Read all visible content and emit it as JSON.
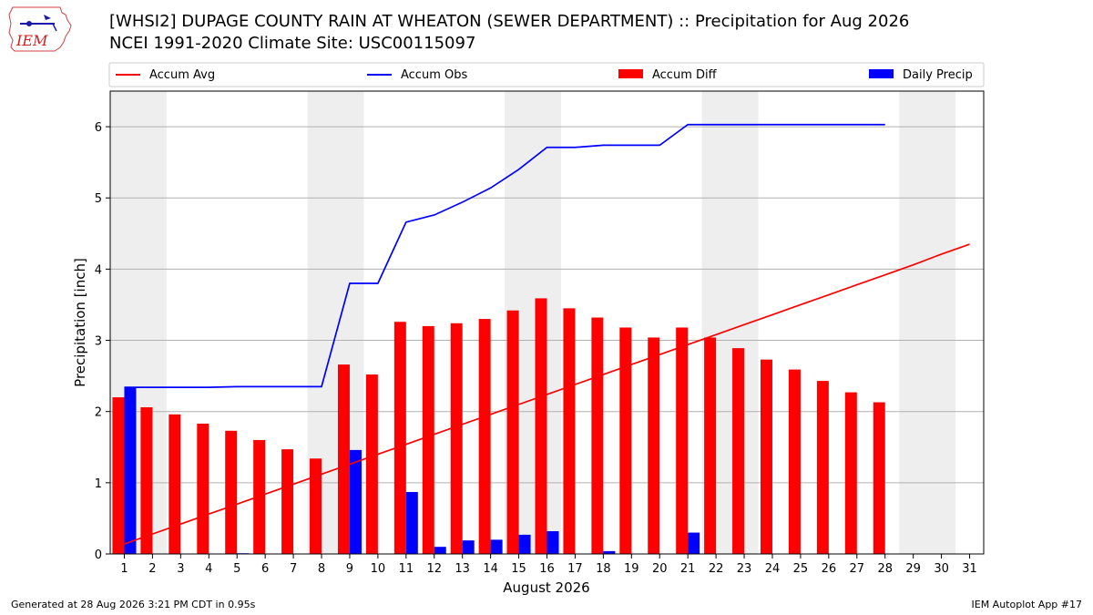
{
  "logo_text": "IEM",
  "title_line1": "[WHSI2] DUPAGE COUNTY RAIN AT WHEATON (SEWER DEPARTMENT) :: Precipitation for Aug 2026",
  "title_line2": "NCEI 1991-2020 Climate Site: USC00115097",
  "footer_left": "Generated at 28 Aug 2026 3:21 PM CDT in 0.95s",
  "footer_right": "IEM Autoplot App #17",
  "colors": {
    "avg": "#ff0000",
    "obs": "#0000ff",
    "diff": "#ff0000",
    "daily": "#0000ff",
    "weekend_shade": "#eeeeee",
    "grid": "#b0b0b0"
  },
  "chart_data": {
    "type": "bar",
    "xlabel": "August 2026",
    "ylabel": "Precipitation [inch]",
    "ylim": [
      0,
      6.5
    ],
    "yticks": [
      0,
      1,
      2,
      3,
      4,
      5,
      6
    ],
    "xlim": [
      0.5,
      31.5
    ],
    "x": [
      1,
      2,
      3,
      4,
      5,
      6,
      7,
      8,
      9,
      10,
      11,
      12,
      13,
      14,
      15,
      16,
      17,
      18,
      19,
      20,
      21,
      22,
      23,
      24,
      25,
      26,
      27,
      28,
      29,
      30,
      31
    ],
    "shaded_days": [
      [
        1,
        2
      ],
      [
        8,
        9
      ],
      [
        15,
        16
      ],
      [
        22,
        23
      ],
      [
        29,
        30
      ]
    ],
    "legend_position": "top",
    "series": [
      {
        "name": "Accum Avg",
        "kind": "line",
        "values": [
          0.14,
          0.28,
          0.42,
          0.56,
          0.7,
          0.84,
          0.98,
          1.12,
          1.26,
          1.4,
          1.54,
          1.68,
          1.82,
          1.96,
          2.1,
          2.24,
          2.38,
          2.52,
          2.66,
          2.8,
          2.94,
          3.08,
          3.22,
          3.36,
          3.5,
          3.64,
          3.78,
          3.92,
          4.06,
          4.21,
          4.35
        ]
      },
      {
        "name": "Accum Obs",
        "kind": "line",
        "values": [
          2.34,
          2.34,
          2.34,
          2.34,
          2.35,
          2.35,
          2.35,
          2.35,
          3.8,
          3.8,
          4.66,
          4.76,
          4.94,
          5.14,
          5.4,
          5.71,
          5.71,
          5.74,
          5.74,
          5.74,
          6.03,
          6.03,
          6.03,
          6.03,
          6.03,
          6.03,
          6.03,
          6.03,
          null,
          null,
          null
        ]
      },
      {
        "name": "Accum Diff",
        "kind": "bar",
        "values": [
          2.2,
          2.06,
          1.96,
          1.83,
          1.73,
          1.6,
          1.47,
          1.34,
          2.66,
          2.52,
          3.26,
          3.2,
          3.24,
          3.3,
          3.42,
          3.59,
          3.45,
          3.32,
          3.18,
          3.04,
          3.18,
          3.04,
          2.89,
          2.73,
          2.59,
          2.43,
          2.27,
          2.13,
          null,
          null,
          null
        ]
      },
      {
        "name": "Daily Precip",
        "kind": "bar",
        "values": [
          2.34,
          0,
          0,
          0,
          0.01,
          0,
          0,
          0,
          1.46,
          0,
          0.87,
          0.1,
          0.19,
          0.2,
          0.27,
          0.32,
          0,
          0.04,
          0,
          0,
          0.3,
          0,
          0,
          0,
          0,
          0,
          0,
          0,
          null,
          null,
          null
        ]
      }
    ]
  }
}
